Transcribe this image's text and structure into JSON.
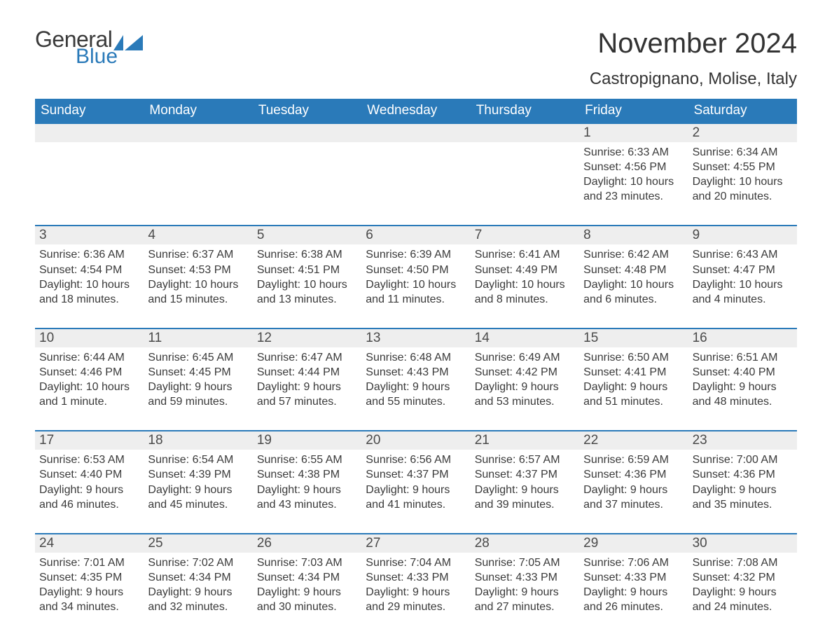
{
  "logo": {
    "word1": "General",
    "word2": "Blue"
  },
  "title": "November 2024",
  "location": "Castropignano, Molise, Italy",
  "colors": {
    "header_bg": "#2a7ab9",
    "header_text": "#ffffff",
    "daynum_bg": "#eeeeee",
    "border": "#2a7ab9",
    "body_text": "#3a3a3a"
  },
  "weekdays": [
    "Sunday",
    "Monday",
    "Tuesday",
    "Wednesday",
    "Thursday",
    "Friday",
    "Saturday"
  ],
  "weeks": [
    [
      null,
      null,
      null,
      null,
      null,
      {
        "n": "1",
        "sunrise": "Sunrise: 6:33 AM",
        "sunset": "Sunset: 4:56 PM",
        "daylight": "Daylight: 10 hours and 23 minutes."
      },
      {
        "n": "2",
        "sunrise": "Sunrise: 6:34 AM",
        "sunset": "Sunset: 4:55 PM",
        "daylight": "Daylight: 10 hours and 20 minutes."
      }
    ],
    [
      {
        "n": "3",
        "sunrise": "Sunrise: 6:36 AM",
        "sunset": "Sunset: 4:54 PM",
        "daylight": "Daylight: 10 hours and 18 minutes."
      },
      {
        "n": "4",
        "sunrise": "Sunrise: 6:37 AM",
        "sunset": "Sunset: 4:53 PM",
        "daylight": "Daylight: 10 hours and 15 minutes."
      },
      {
        "n": "5",
        "sunrise": "Sunrise: 6:38 AM",
        "sunset": "Sunset: 4:51 PM",
        "daylight": "Daylight: 10 hours and 13 minutes."
      },
      {
        "n": "6",
        "sunrise": "Sunrise: 6:39 AM",
        "sunset": "Sunset: 4:50 PM",
        "daylight": "Daylight: 10 hours and 11 minutes."
      },
      {
        "n": "7",
        "sunrise": "Sunrise: 6:41 AM",
        "sunset": "Sunset: 4:49 PM",
        "daylight": "Daylight: 10 hours and 8 minutes."
      },
      {
        "n": "8",
        "sunrise": "Sunrise: 6:42 AM",
        "sunset": "Sunset: 4:48 PM",
        "daylight": "Daylight: 10 hours and 6 minutes."
      },
      {
        "n": "9",
        "sunrise": "Sunrise: 6:43 AM",
        "sunset": "Sunset: 4:47 PM",
        "daylight": "Daylight: 10 hours and 4 minutes."
      }
    ],
    [
      {
        "n": "10",
        "sunrise": "Sunrise: 6:44 AM",
        "sunset": "Sunset: 4:46 PM",
        "daylight": "Daylight: 10 hours and 1 minute."
      },
      {
        "n": "11",
        "sunrise": "Sunrise: 6:45 AM",
        "sunset": "Sunset: 4:45 PM",
        "daylight": "Daylight: 9 hours and 59 minutes."
      },
      {
        "n": "12",
        "sunrise": "Sunrise: 6:47 AM",
        "sunset": "Sunset: 4:44 PM",
        "daylight": "Daylight: 9 hours and 57 minutes."
      },
      {
        "n": "13",
        "sunrise": "Sunrise: 6:48 AM",
        "sunset": "Sunset: 4:43 PM",
        "daylight": "Daylight: 9 hours and 55 minutes."
      },
      {
        "n": "14",
        "sunrise": "Sunrise: 6:49 AM",
        "sunset": "Sunset: 4:42 PM",
        "daylight": "Daylight: 9 hours and 53 minutes."
      },
      {
        "n": "15",
        "sunrise": "Sunrise: 6:50 AM",
        "sunset": "Sunset: 4:41 PM",
        "daylight": "Daylight: 9 hours and 51 minutes."
      },
      {
        "n": "16",
        "sunrise": "Sunrise: 6:51 AM",
        "sunset": "Sunset: 4:40 PM",
        "daylight": "Daylight: 9 hours and 48 minutes."
      }
    ],
    [
      {
        "n": "17",
        "sunrise": "Sunrise: 6:53 AM",
        "sunset": "Sunset: 4:40 PM",
        "daylight": "Daylight: 9 hours and 46 minutes."
      },
      {
        "n": "18",
        "sunrise": "Sunrise: 6:54 AM",
        "sunset": "Sunset: 4:39 PM",
        "daylight": "Daylight: 9 hours and 45 minutes."
      },
      {
        "n": "19",
        "sunrise": "Sunrise: 6:55 AM",
        "sunset": "Sunset: 4:38 PM",
        "daylight": "Daylight: 9 hours and 43 minutes."
      },
      {
        "n": "20",
        "sunrise": "Sunrise: 6:56 AM",
        "sunset": "Sunset: 4:37 PM",
        "daylight": "Daylight: 9 hours and 41 minutes."
      },
      {
        "n": "21",
        "sunrise": "Sunrise: 6:57 AM",
        "sunset": "Sunset: 4:37 PM",
        "daylight": "Daylight: 9 hours and 39 minutes."
      },
      {
        "n": "22",
        "sunrise": "Sunrise: 6:59 AM",
        "sunset": "Sunset: 4:36 PM",
        "daylight": "Daylight: 9 hours and 37 minutes."
      },
      {
        "n": "23",
        "sunrise": "Sunrise: 7:00 AM",
        "sunset": "Sunset: 4:36 PM",
        "daylight": "Daylight: 9 hours and 35 minutes."
      }
    ],
    [
      {
        "n": "24",
        "sunrise": "Sunrise: 7:01 AM",
        "sunset": "Sunset: 4:35 PM",
        "daylight": "Daylight: 9 hours and 34 minutes."
      },
      {
        "n": "25",
        "sunrise": "Sunrise: 7:02 AM",
        "sunset": "Sunset: 4:34 PM",
        "daylight": "Daylight: 9 hours and 32 minutes."
      },
      {
        "n": "26",
        "sunrise": "Sunrise: 7:03 AM",
        "sunset": "Sunset: 4:34 PM",
        "daylight": "Daylight: 9 hours and 30 minutes."
      },
      {
        "n": "27",
        "sunrise": "Sunrise: 7:04 AM",
        "sunset": "Sunset: 4:33 PM",
        "daylight": "Daylight: 9 hours and 29 minutes."
      },
      {
        "n": "28",
        "sunrise": "Sunrise: 7:05 AM",
        "sunset": "Sunset: 4:33 PM",
        "daylight": "Daylight: 9 hours and 27 minutes."
      },
      {
        "n": "29",
        "sunrise": "Sunrise: 7:06 AM",
        "sunset": "Sunset: 4:33 PM",
        "daylight": "Daylight: 9 hours and 26 minutes."
      },
      {
        "n": "30",
        "sunrise": "Sunrise: 7:08 AM",
        "sunset": "Sunset: 4:32 PM",
        "daylight": "Daylight: 9 hours and 24 minutes."
      }
    ]
  ]
}
